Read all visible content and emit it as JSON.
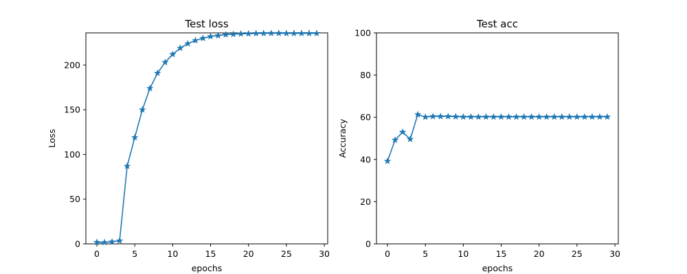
{
  "chart_data": [
    {
      "type": "line",
      "title": "Test loss",
      "xlabel": "epochs",
      "ylabel": "Loss",
      "xlim": [
        -1.45,
        30.45
      ],
      "ylim": [
        0,
        236
      ],
      "xticks": [
        0,
        5,
        10,
        15,
        20,
        25,
        30
      ],
      "yticks": [
        0,
        50,
        100,
        150,
        200
      ],
      "grid": false,
      "marker": "star",
      "color": "#1f77b4",
      "series": [
        {
          "x": [
            0,
            1,
            2,
            3,
            4,
            5,
            6,
            7,
            8,
            9,
            10,
            11,
            12,
            13,
            14,
            15,
            16,
            17,
            18,
            19,
            20,
            21,
            22,
            23,
            24,
            25,
            26,
            27,
            28,
            29
          ],
          "values": [
            1.8,
            1.6,
            2.3,
            3.5,
            87,
            119,
            150,
            174,
            191,
            203,
            212,
            219,
            224,
            227.5,
            230,
            232,
            233,
            234,
            234.5,
            235,
            235.2,
            235.4,
            235.5,
            235.6,
            235.6,
            235.5,
            235.5,
            235.5,
            235.5,
            235.5
          ]
        }
      ]
    },
    {
      "type": "line",
      "title": "Test acc",
      "xlabel": "epochs",
      "ylabel": "Accuracy",
      "xlim": [
        -1.45,
        30.45
      ],
      "ylim": [
        0,
        100
      ],
      "xticks": [
        0,
        5,
        10,
        15,
        20,
        25,
        30
      ],
      "yticks": [
        0,
        20,
        40,
        60,
        80,
        100
      ],
      "grid": false,
      "marker": "star",
      "color": "#1f77b4",
      "series": [
        {
          "x": [
            0,
            1,
            2,
            3,
            4,
            5,
            6,
            7,
            8,
            9,
            10,
            11,
            12,
            13,
            14,
            15,
            16,
            17,
            18,
            19,
            20,
            21,
            22,
            23,
            24,
            25,
            26,
            27,
            28,
            29
          ],
          "values": [
            39.2,
            49.2,
            53,
            49.6,
            61.3,
            60.1,
            60.4,
            60.4,
            60.4,
            60.3,
            60.2,
            60.2,
            60.2,
            60.2,
            60.2,
            60.2,
            60.2,
            60.2,
            60.2,
            60.2,
            60.2,
            60.2,
            60.2,
            60.2,
            60.2,
            60.2,
            60.2,
            60.2,
            60.2,
            60.2
          ]
        }
      ]
    }
  ]
}
